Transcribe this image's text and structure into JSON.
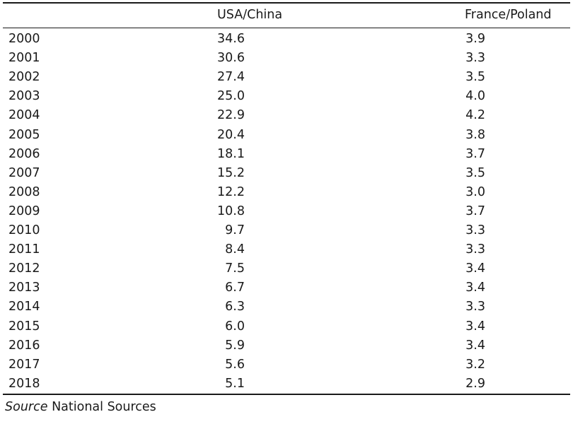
{
  "table": {
    "headers": {
      "year": "",
      "usa_china": "USA/China",
      "france_poland": "France/Poland"
    },
    "rows": [
      {
        "year": "2000",
        "usa_china": "34.6",
        "france_poland": "3.9"
      },
      {
        "year": "2001",
        "usa_china": "30.6",
        "france_poland": "3.3"
      },
      {
        "year": "2002",
        "usa_china": "27.4",
        "france_poland": "3.5"
      },
      {
        "year": "2003",
        "usa_china": "25.0",
        "france_poland": "4.0"
      },
      {
        "year": "2004",
        "usa_china": "22.9",
        "france_poland": "4.2"
      },
      {
        "year": "2005",
        "usa_china": "20.4",
        "france_poland": "3.8"
      },
      {
        "year": "2006",
        "usa_china": "18.1",
        "france_poland": "3.7"
      },
      {
        "year": "2007",
        "usa_china": "15.2",
        "france_poland": "3.5"
      },
      {
        "year": "2008",
        "usa_china": "12.2",
        "france_poland": "3.0"
      },
      {
        "year": "2009",
        "usa_china": "10.8",
        "france_poland": "3.7"
      },
      {
        "year": "2010",
        "usa_china": "9.7",
        "france_poland": "3.3"
      },
      {
        "year": "2011",
        "usa_china": "8.4",
        "france_poland": "3.3"
      },
      {
        "year": "2012",
        "usa_china": "7.5",
        "france_poland": "3.4"
      },
      {
        "year": "2013",
        "usa_china": "6.7",
        "france_poland": "3.4"
      },
      {
        "year": "2014",
        "usa_china": "6.3",
        "france_poland": "3.3"
      },
      {
        "year": "2015",
        "usa_china": "6.0",
        "france_poland": "3.4"
      },
      {
        "year": "2016",
        "usa_china": "5.9",
        "france_poland": "3.4"
      },
      {
        "year": "2017",
        "usa_china": "5.6",
        "france_poland": "3.2"
      },
      {
        "year": "2018",
        "usa_china": "5.1",
        "france_poland": "2.9"
      }
    ]
  },
  "source": {
    "label": "Source",
    "text": "National Sources"
  }
}
